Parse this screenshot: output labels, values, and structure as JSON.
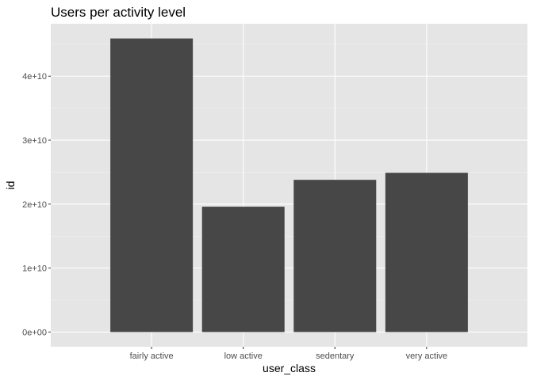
{
  "chart_data": {
    "type": "bar",
    "title": "Users per activity level",
    "xlabel": "user_class",
    "ylabel": "id",
    "categories": [
      "fairly active",
      "low active",
      "sedentary",
      "very active"
    ],
    "values": [
      45900000000,
      19600000000,
      23800000000,
      24900000000
    ],
    "ylim": [
      -2300000000,
      48200000000
    ],
    "yticks": [
      0,
      10000000000,
      20000000000,
      30000000000,
      40000000000
    ],
    "ytick_labels": [
      "0e+00",
      "1e+10",
      "2e+10",
      "3e+10",
      "4e+10"
    ],
    "grid": true,
    "colors": {
      "panel": "#e5e5e5",
      "grid_major": "#ffffff",
      "grid_minor": "#f2f2f2",
      "bar": "#474747",
      "text": "#000000",
      "tick_text": "#4d4d4d",
      "tick": "#333333"
    }
  }
}
